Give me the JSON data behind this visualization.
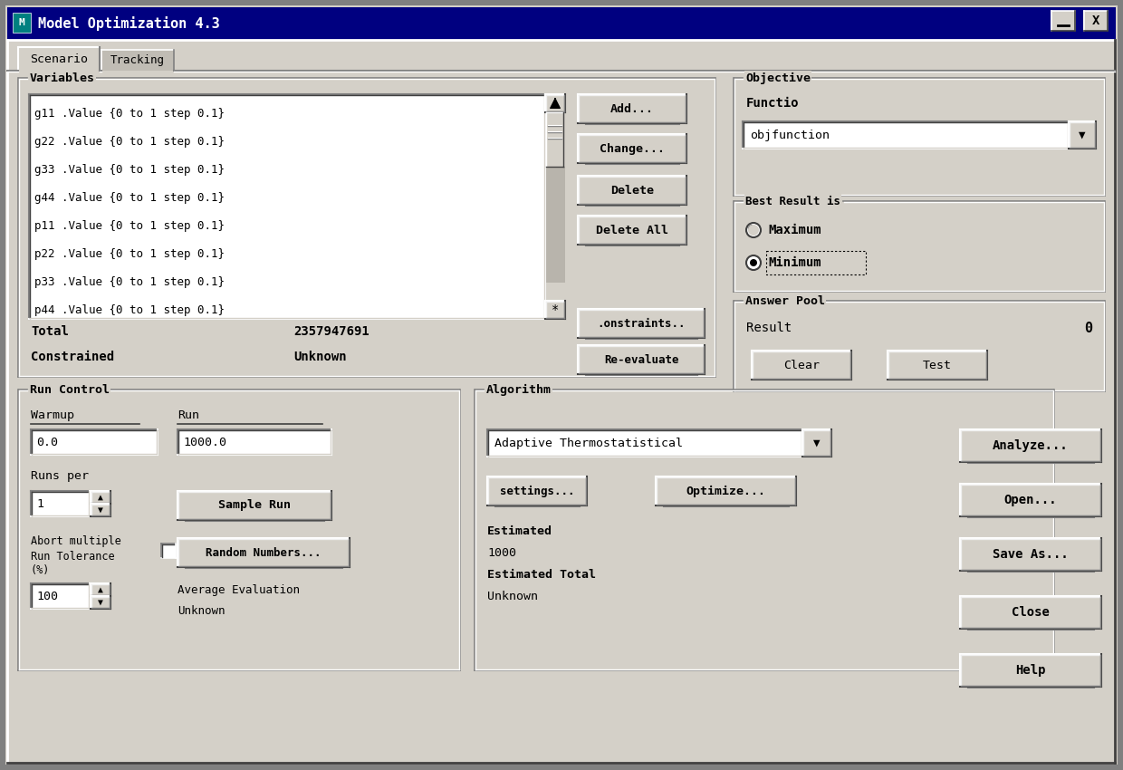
{
  "title_bar": "Model Optimization 4.3",
  "title_bar_bg": "#000000",
  "dialog_bg": "#d4d0c8",
  "tab_labels": [
    "Scenario",
    "Tracking"
  ],
  "variable_list": [
    "g11 .Value {0 to 1 step 0.1}",
    "g22 .Value {0 to 1 step 0.1}",
    "g33 .Value {0 to 1 step 0.1}",
    "g44 .Value {0 to 1 step 0.1}",
    "p11 .Value {0 to 1 step 0.1}",
    "p22 .Value {0 to 1 step 0.1}",
    "p33 .Value {0 to 1 step 0.1}",
    "p44 .Value {0 to 1 step 0.1}"
  ],
  "total_label": "Total",
  "total_value": "2357947691",
  "constrained_label": "Constrained",
  "constrained_value": "Unknown",
  "buttons_right_top": [
    "Add...",
    "Change...",
    "Delete",
    "Delete All"
  ],
  "button_constraints": ".onstraints..",
  "button_reevaluate": "Re-evaluate",
  "objective_dropdown": "objfunction",
  "radio_maximum": "Maximum",
  "radio_minimum": "Minimum",
  "result_label": "Result",
  "result_value": "0",
  "btn_clear": "Clear",
  "btn_test": "Test",
  "warmup_label": "Warmup",
  "warmup_value": "0.0",
  "run_label": "Run",
  "run_value": "1000.0",
  "runs_per_label": "Runs per",
  "runs_per_value": "1",
  "sample_run_btn": "Sample Run",
  "tolerance_value": "100",
  "random_numbers_btn": "Random Numbers...",
  "algo_dropdown": "Adaptive Thermostatistical",
  "settings_btn": "settings...",
  "optimize_btn": "Optimize...",
  "analyze_btn": "Analyze...",
  "open_btn": "Open...",
  "save_as_btn": "Save As...",
  "close_btn": "Close",
  "help_btn": "Help"
}
